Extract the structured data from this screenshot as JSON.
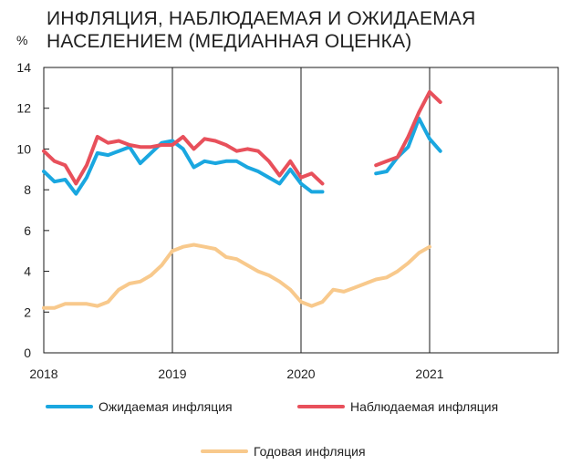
{
  "chart_data": {
    "type": "line",
    "title_lines": [
      "ИНФЛЯЦИЯ, НАБЛЮДАЕМАЯ И ОЖИДАЕМАЯ",
      "НАСЕЛЕНИЕМ (МЕДИАННАЯ ОЦЕНКА)"
    ],
    "unit": "%",
    "xlim": [
      2018,
      2022
    ],
    "ylim": [
      0,
      14
    ],
    "y_ticks": [
      "0",
      "2",
      "4",
      "6",
      "8",
      "10",
      "12",
      "14"
    ],
    "x_ticks": [
      "2018",
      "2019",
      "2020",
      "2021"
    ],
    "grid": "vertical lines at year boundaries",
    "series": [
      {
        "name": "Ожидаемая инфляция",
        "color": "#1aa7e0",
        "segments": [
          [
            [
              2018.0,
              8.9
            ],
            [
              2018.083,
              8.4
            ],
            [
              2018.167,
              8.5
            ],
            [
              2018.25,
              7.8
            ],
            [
              2018.333,
              8.6
            ],
            [
              2018.417,
              9.8
            ],
            [
              2018.5,
              9.7
            ],
            [
              2018.583,
              9.9
            ],
            [
              2018.667,
              10.1
            ],
            [
              2018.75,
              9.3
            ],
            [
              2018.833,
              9.8
            ],
            [
              2018.917,
              10.3
            ],
            [
              2019.0,
              10.4
            ],
            [
              2019.083,
              10.0
            ],
            [
              2019.167,
              9.1
            ],
            [
              2019.25,
              9.4
            ],
            [
              2019.333,
              9.3
            ],
            [
              2019.417,
              9.4
            ],
            [
              2019.5,
              9.4
            ],
            [
              2019.583,
              9.1
            ],
            [
              2019.667,
              8.9
            ],
            [
              2019.75,
              8.6
            ],
            [
              2019.833,
              8.3
            ],
            [
              2019.917,
              9.0
            ],
            [
              2020.0,
              8.3
            ],
            [
              2020.083,
              7.9
            ],
            [
              2020.167,
              7.9
            ]
          ],
          [
            [
              2020.583,
              8.8
            ],
            [
              2020.667,
              8.9
            ],
            [
              2020.75,
              9.6
            ],
            [
              2020.833,
              10.1
            ],
            [
              2020.917,
              11.5
            ],
            [
              2021.0,
              10.5
            ],
            [
              2021.083,
              9.9
            ]
          ]
        ]
      },
      {
        "name": "Наблюдаемая  инфляция",
        "color": "#e8505b",
        "segments": [
          [
            [
              2018.0,
              9.9
            ],
            [
              2018.083,
              9.4
            ],
            [
              2018.167,
              9.2
            ],
            [
              2018.25,
              8.3
            ],
            [
              2018.333,
              9.2
            ],
            [
              2018.417,
              10.6
            ],
            [
              2018.5,
              10.3
            ],
            [
              2018.583,
              10.4
            ],
            [
              2018.667,
              10.2
            ],
            [
              2018.75,
              10.1
            ],
            [
              2018.833,
              10.1
            ],
            [
              2018.917,
              10.2
            ],
            [
              2019.0,
              10.2
            ],
            [
              2019.083,
              10.6
            ],
            [
              2019.167,
              10.0
            ],
            [
              2019.25,
              10.5
            ],
            [
              2019.333,
              10.4
            ],
            [
              2019.417,
              10.2
            ],
            [
              2019.5,
              9.9
            ],
            [
              2019.583,
              10.0
            ],
            [
              2019.667,
              9.9
            ],
            [
              2019.75,
              9.4
            ],
            [
              2019.833,
              8.7
            ],
            [
              2019.917,
              9.4
            ],
            [
              2020.0,
              8.6
            ],
            [
              2020.083,
              8.8
            ],
            [
              2020.167,
              8.3
            ]
          ],
          [
            [
              2020.583,
              9.2
            ],
            [
              2020.667,
              9.4
            ],
            [
              2020.75,
              9.6
            ],
            [
              2020.833,
              10.6
            ],
            [
              2020.917,
              11.8
            ],
            [
              2021.0,
              12.8
            ],
            [
              2021.083,
              12.3
            ]
          ]
        ]
      },
      {
        "name": "Годовая инфляция",
        "color": "#f8c98c",
        "segments": [
          [
            [
              2018.0,
              2.2
            ],
            [
              2018.083,
              2.2
            ],
            [
              2018.167,
              2.4
            ],
            [
              2018.25,
              2.4
            ],
            [
              2018.333,
              2.4
            ],
            [
              2018.417,
              2.3
            ],
            [
              2018.5,
              2.5
            ],
            [
              2018.583,
              3.1
            ],
            [
              2018.667,
              3.4
            ],
            [
              2018.75,
              3.5
            ],
            [
              2018.833,
              3.8
            ],
            [
              2018.917,
              4.3
            ],
            [
              2019.0,
              5.0
            ],
            [
              2019.083,
              5.2
            ],
            [
              2019.167,
              5.3
            ],
            [
              2019.25,
              5.2
            ],
            [
              2019.333,
              5.1
            ],
            [
              2019.417,
              4.7
            ],
            [
              2019.5,
              4.6
            ],
            [
              2019.583,
              4.3
            ],
            [
              2019.667,
              4.0
            ],
            [
              2019.75,
              3.8
            ],
            [
              2019.833,
              3.5
            ],
            [
              2019.917,
              3.1
            ],
            [
              2020.0,
              2.5
            ],
            [
              2020.083,
              2.3
            ],
            [
              2020.167,
              2.5
            ],
            [
              2020.25,
              3.1
            ],
            [
              2020.333,
              3.0
            ],
            [
              2020.417,
              3.2
            ],
            [
              2020.5,
              3.4
            ],
            [
              2020.583,
              3.6
            ],
            [
              2020.667,
              3.7
            ],
            [
              2020.75,
              4.0
            ],
            [
              2020.833,
              4.4
            ],
            [
              2020.917,
              4.9
            ],
            [
              2021.0,
              5.2
            ]
          ]
        ]
      }
    ]
  }
}
